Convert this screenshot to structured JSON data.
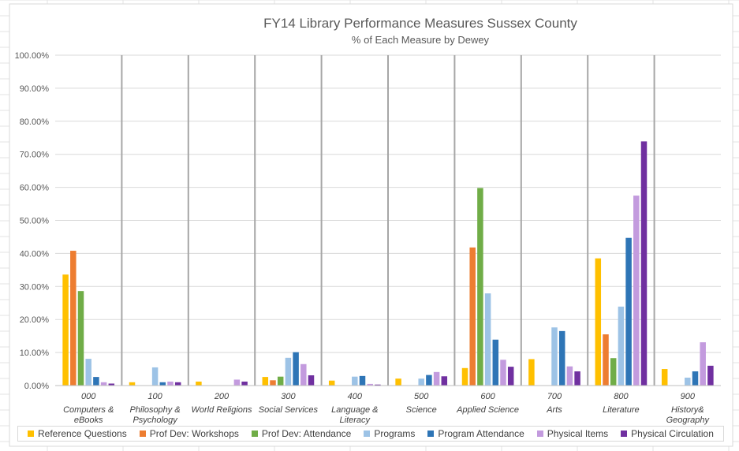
{
  "chart_data": {
    "type": "bar",
    "title": "FY14 Library Performance Measures Sussex County",
    "subtitle": "% of Each Measure by Dewey",
    "xlabel": "",
    "ylabel": "",
    "ylim": [
      0,
      100
    ],
    "yticks": [
      "0.00%",
      "10.00%",
      "20.00%",
      "30.00%",
      "40.00%",
      "50.00%",
      "60.00%",
      "70.00%",
      "80.00%",
      "90.00%",
      "100.00%"
    ],
    "grid": true,
    "legend_position": "bottom",
    "categories": [
      {
        "code": "000",
        "name": [
          "Computers &",
          "eBooks"
        ]
      },
      {
        "code": "100",
        "name": [
          "Philosophy &",
          "Psychology"
        ]
      },
      {
        "code": "200",
        "name": [
          "World Religions"
        ]
      },
      {
        "code": "300",
        "name": [
          "Social Services"
        ]
      },
      {
        "code": "400",
        "name": [
          "Language &",
          "Literacy"
        ]
      },
      {
        "code": "500",
        "name": [
          "Science"
        ]
      },
      {
        "code": "600",
        "name": [
          "Applied Science"
        ]
      },
      {
        "code": "700",
        "name": [
          "Arts"
        ]
      },
      {
        "code": "800",
        "name": [
          "Literature"
        ]
      },
      {
        "code": "900",
        "name": [
          "History&",
          "Geography"
        ]
      }
    ],
    "series": [
      {
        "name": "Reference Questions",
        "color": "#FFC000",
        "values": [
          33.6,
          1.0,
          1.2,
          2.6,
          1.5,
          2.1,
          5.3,
          8.0,
          38.5,
          5.0
        ]
      },
      {
        "name": "Prof Dev: Workshops",
        "color": "#ED7D31",
        "values": [
          40.8,
          0,
          0,
          1.6,
          0,
          0,
          41.8,
          0,
          15.5,
          0
        ]
      },
      {
        "name": "Prof Dev: Attendance",
        "color": "#70AD47",
        "values": [
          28.6,
          0,
          0,
          2.7,
          0,
          0,
          59.8,
          0,
          8.3,
          0
        ]
      },
      {
        "name": "Programs",
        "color": "#9DC3E6",
        "values": [
          8.1,
          5.5,
          0,
          8.4,
          2.7,
          2.1,
          27.9,
          17.6,
          23.9,
          2.4
        ]
      },
      {
        "name": "Program Attendance",
        "color": "#2E75B6",
        "values": [
          2.6,
          1.0,
          0,
          10.1,
          2.9,
          3.2,
          13.9,
          16.5,
          44.7,
          4.3
        ]
      },
      {
        "name": "Physical Items",
        "color": "#C39BDE",
        "values": [
          1.0,
          1.2,
          1.8,
          6.5,
          0.5,
          4.1,
          7.8,
          5.8,
          57.5,
          13.1
        ]
      },
      {
        "name": "Physical Circulation",
        "color": "#7030A0",
        "values": [
          0.6,
          1.0,
          1.2,
          3.1,
          0.3,
          2.8,
          5.7,
          4.3,
          73.9,
          6.0
        ]
      }
    ]
  }
}
